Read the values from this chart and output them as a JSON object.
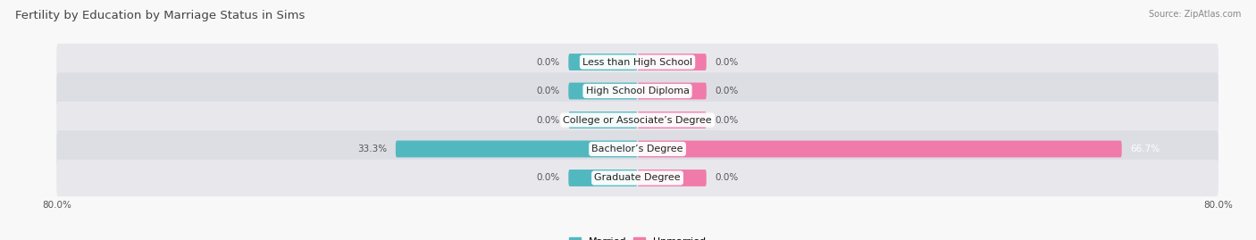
{
  "title": "Fertility by Education by Marriage Status in Sims",
  "source": "Source: ZipAtlas.com",
  "categories": [
    "Less than High School",
    "High School Diploma",
    "College or Associate’s Degree",
    "Bachelor’s Degree",
    "Graduate Degree"
  ],
  "married_values": [
    0.0,
    0.0,
    0.0,
    33.3,
    0.0
  ],
  "unmarried_values": [
    0.0,
    0.0,
    0.0,
    66.7,
    0.0
  ],
  "married_color": "#52b8c0",
  "unmarried_color": "#f07baa",
  "row_bg_color": "#e8e8ec",
  "row_bg_color2": "#dddde4",
  "x_max": 80.0,
  "background_color": "#f8f8f8",
  "title_fontsize": 9.5,
  "label_fontsize": 8,
  "value_fontsize": 7.5,
  "tick_fontsize": 7.5,
  "stub_val": 9.5
}
